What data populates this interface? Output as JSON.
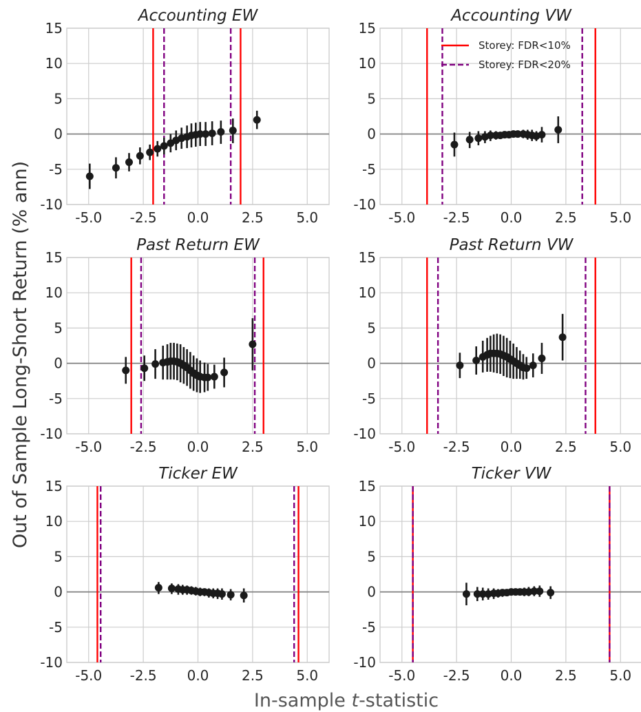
{
  "figure": {
    "ylabel": "Out of Sample Long-Short Return (% ann)",
    "xlabel_pre": "In-sample ",
    "xlabel_t": "t",
    "xlabel_post": "-statistic"
  },
  "legend": [
    {
      "label": "Storey: FDR<10%",
      "color": "#ff0000",
      "style": "solid"
    },
    {
      "label": "Storey: FDR<20%",
      "color": "#800080",
      "style": "dashed"
    }
  ],
  "colors": {
    "points": "#1a1a1a",
    "grid": "#cccccc",
    "zero_line": "#808080",
    "fdr10": "#ff0000",
    "fdr20": "#800080"
  },
  "chart_data": [
    {
      "type": "scatter",
      "title": "Accounting EW",
      "xlim": [
        -6,
        6
      ],
      "ylim": [
        -10,
        15
      ],
      "xticks": [
        "-5.0",
        "-2.5",
        "0.0",
        "2.5",
        "5.0"
      ],
      "yticks": [
        "-10",
        "-5",
        "0",
        "5",
        "10",
        "15"
      ],
      "fdr10": [
        -2.05,
        1.95
      ],
      "fdr20": [
        -1.55,
        1.5
      ],
      "points": [
        {
          "x": -4.95,
          "y": -6.0,
          "lo": -7.8,
          "hi": -4.2
        },
        {
          "x": -3.75,
          "y": -4.8,
          "lo": -6.3,
          "hi": -3.3
        },
        {
          "x": -3.15,
          "y": -4.0,
          "lo": -5.3,
          "hi": -2.7
        },
        {
          "x": -2.65,
          "y": -3.1,
          "lo": -4.3,
          "hi": -1.9
        },
        {
          "x": -2.2,
          "y": -2.6,
          "lo": -3.7,
          "hi": -1.5
        },
        {
          "x": -1.85,
          "y": -2.1,
          "lo": -3.2,
          "hi": -1.0
        },
        {
          "x": -1.55,
          "y": -1.7,
          "lo": -2.9,
          "hi": -0.5
        },
        {
          "x": -1.25,
          "y": -1.3,
          "lo": -2.6,
          "hi": 0.0
        },
        {
          "x": -1.0,
          "y": -0.9,
          "lo": -2.3,
          "hi": 0.5
        },
        {
          "x": -0.75,
          "y": -0.6,
          "lo": -2.1,
          "hi": 0.9
        },
        {
          "x": -0.5,
          "y": -0.4,
          "lo": -2.0,
          "hi": 1.2
        },
        {
          "x": -0.3,
          "y": -0.2,
          "lo": -1.9,
          "hi": 1.5
        },
        {
          "x": -0.1,
          "y": -0.1,
          "lo": -1.8,
          "hi": 1.6
        },
        {
          "x": 0.1,
          "y": 0.0,
          "lo": -1.7,
          "hi": 1.7
        },
        {
          "x": 0.35,
          "y": 0.0,
          "lo": -1.7,
          "hi": 1.7
        },
        {
          "x": 0.65,
          "y": 0.1,
          "lo": -1.6,
          "hi": 1.8
        },
        {
          "x": 1.05,
          "y": 0.3,
          "lo": -1.4,
          "hi": 1.9
        },
        {
          "x": 1.6,
          "y": 0.5,
          "lo": -1.3,
          "hi": 2.2
        },
        {
          "x": 2.7,
          "y": 2.0,
          "lo": 0.7,
          "hi": 3.3
        }
      ]
    },
    {
      "type": "scatter",
      "title": "Accounting VW",
      "xlim": [
        -6,
        6
      ],
      "ylim": [
        -10,
        15
      ],
      "xticks": [
        "-5.0",
        "-2.5",
        "0.0",
        "2.5",
        "5.0"
      ],
      "yticks": [
        "-10",
        "-5",
        "0",
        "5",
        "10",
        "15"
      ],
      "fdr10": [
        -3.85,
        3.85
      ],
      "fdr20": [
        -3.15,
        3.25
      ],
      "points": [
        {
          "x": -2.6,
          "y": -1.5,
          "lo": -3.2,
          "hi": 0.2
        },
        {
          "x": -1.9,
          "y": -0.8,
          "lo": -2.0,
          "hi": 0.3
        },
        {
          "x": -1.5,
          "y": -0.6,
          "lo": -1.6,
          "hi": 0.4
        },
        {
          "x": -1.2,
          "y": -0.4,
          "lo": -1.3,
          "hi": 0.4
        },
        {
          "x": -0.95,
          "y": -0.2,
          "lo": -1.0,
          "hi": 0.5
        },
        {
          "x": -0.7,
          "y": -0.2,
          "lo": -0.8,
          "hi": 0.4
        },
        {
          "x": -0.5,
          "y": -0.2,
          "lo": -0.7,
          "hi": 0.3
        },
        {
          "x": -0.3,
          "y": -0.1,
          "lo": -0.6,
          "hi": 0.4
        },
        {
          "x": -0.1,
          "y": -0.1,
          "lo": -0.5,
          "hi": 0.3
        },
        {
          "x": 0.1,
          "y": 0.0,
          "lo": -0.5,
          "hi": 0.4
        },
        {
          "x": 0.3,
          "y": 0.0,
          "lo": -0.5,
          "hi": 0.5
        },
        {
          "x": 0.55,
          "y": 0.0,
          "lo": -0.6,
          "hi": 0.6
        },
        {
          "x": 0.75,
          "y": -0.1,
          "lo": -0.8,
          "hi": 0.6
        },
        {
          "x": 0.95,
          "y": -0.2,
          "lo": -1.0,
          "hi": 0.6
        },
        {
          "x": 1.15,
          "y": -0.3,
          "lo": -1.0,
          "hi": 0.4
        },
        {
          "x": 1.4,
          "y": -0.1,
          "lo": -1.2,
          "hi": 1.0
        },
        {
          "x": 2.15,
          "y": 0.6,
          "lo": -1.3,
          "hi": 2.5
        }
      ]
    },
    {
      "type": "scatter",
      "title": "Past Return EW",
      "xlim": [
        -6,
        6
      ],
      "ylim": [
        -10,
        15
      ],
      "xticks": [
        "-5.0",
        "-2.5",
        "0.0",
        "2.5",
        "5.0"
      ],
      "yticks": [
        "-10",
        "-5",
        "0",
        "5",
        "10",
        "15"
      ],
      "fdr10": [
        -3.05,
        3.0
      ],
      "fdr20": [
        -2.6,
        2.6
      ],
      "points": [
        {
          "x": -3.3,
          "y": -1.0,
          "lo": -2.9,
          "hi": 0.9
        },
        {
          "x": -2.45,
          "y": -0.7,
          "lo": -2.5,
          "hi": 1.1
        },
        {
          "x": -1.95,
          "y": -0.1,
          "lo": -2.2,
          "hi": 2.0
        },
        {
          "x": -1.6,
          "y": 0.1,
          "lo": -2.3,
          "hi": 2.5
        },
        {
          "x": -1.4,
          "y": 0.2,
          "lo": -2.3,
          "hi": 2.7
        },
        {
          "x": -1.25,
          "y": 0.3,
          "lo": -2.3,
          "hi": 2.9
        },
        {
          "x": -1.1,
          "y": 0.3,
          "lo": -2.3,
          "hi": 2.9
        },
        {
          "x": -0.95,
          "y": 0.2,
          "lo": -2.4,
          "hi": 2.8
        },
        {
          "x": -0.8,
          "y": 0.0,
          "lo": -2.7,
          "hi": 2.7
        },
        {
          "x": -0.65,
          "y": -0.3,
          "lo": -2.9,
          "hi": 2.3
        },
        {
          "x": -0.5,
          "y": -0.6,
          "lo": -3.2,
          "hi": 2.0
        },
        {
          "x": -0.35,
          "y": -1.0,
          "lo": -3.6,
          "hi": 1.6
        },
        {
          "x": -0.2,
          "y": -1.4,
          "lo": -3.9,
          "hi": 1.1
        },
        {
          "x": -0.05,
          "y": -1.7,
          "lo": -4.1,
          "hi": 0.7
        },
        {
          "x": 0.1,
          "y": -1.9,
          "lo": -4.2,
          "hi": 0.4
        },
        {
          "x": 0.3,
          "y": -2.0,
          "lo": -4.1,
          "hi": 0.1
        },
        {
          "x": 0.45,
          "y": -2.0,
          "lo": -3.9,
          "hi": -0.1
        },
        {
          "x": 0.75,
          "y": -1.9,
          "lo": -3.6,
          "hi": -0.2
        },
        {
          "x": 1.2,
          "y": -1.3,
          "lo": -3.4,
          "hi": 0.8
        },
        {
          "x": 2.5,
          "y": 2.7,
          "lo": -1.0,
          "hi": 6.4
        }
      ]
    },
    {
      "type": "scatter",
      "title": "Past Return VW",
      "xlim": [
        -6,
        6
      ],
      "ylim": [
        -10,
        15
      ],
      "xticks": [
        "-5.0",
        "-2.5",
        "0.0",
        "2.5",
        "5.0"
      ],
      "yticks": [
        "-10",
        "-5",
        "0",
        "5",
        "10",
        "15"
      ],
      "fdr10": [
        -3.85,
        3.85
      ],
      "fdr20": [
        -3.35,
        3.4
      ],
      "points": [
        {
          "x": -2.35,
          "y": -0.3,
          "lo": -2.1,
          "hi": 1.5
        },
        {
          "x": -1.6,
          "y": 0.4,
          "lo": -1.6,
          "hi": 2.4
        },
        {
          "x": -1.3,
          "y": 0.9,
          "lo": -1.3,
          "hi": 3.2
        },
        {
          "x": -1.1,
          "y": 1.2,
          "lo": -1.2,
          "hi": 3.6
        },
        {
          "x": -0.95,
          "y": 1.4,
          "lo": -1.2,
          "hi": 3.9
        },
        {
          "x": -0.8,
          "y": 1.4,
          "lo": -1.3,
          "hi": 4.1
        },
        {
          "x": -0.65,
          "y": 1.4,
          "lo": -1.4,
          "hi": 4.2
        },
        {
          "x": -0.5,
          "y": 1.3,
          "lo": -1.5,
          "hi": 4.1
        },
        {
          "x": -0.35,
          "y": 1.1,
          "lo": -1.8,
          "hi": 3.9
        },
        {
          "x": -0.2,
          "y": 0.9,
          "lo": -2.0,
          "hi": 3.6
        },
        {
          "x": -0.05,
          "y": 0.6,
          "lo": -2.1,
          "hi": 3.2
        },
        {
          "x": 0.1,
          "y": 0.3,
          "lo": -2.2,
          "hi": 2.8
        },
        {
          "x": 0.25,
          "y": 0.0,
          "lo": -2.2,
          "hi": 2.3
        },
        {
          "x": 0.4,
          "y": -0.3,
          "lo": -2.2,
          "hi": 1.8
        },
        {
          "x": 0.55,
          "y": -0.6,
          "lo": -2.3,
          "hi": 1.3
        },
        {
          "x": 0.7,
          "y": -0.7,
          "lo": -2.2,
          "hi": 0.9
        },
        {
          "x": 1.0,
          "y": -0.3,
          "lo": -2.0,
          "hi": 1.4
        },
        {
          "x": 1.4,
          "y": 0.7,
          "lo": -1.5,
          "hi": 2.9
        },
        {
          "x": 2.35,
          "y": 3.7,
          "lo": 0.4,
          "hi": 7.0
        }
      ]
    },
    {
      "type": "scatter",
      "title": "Ticker EW",
      "xlim": [
        -6,
        6
      ],
      "ylim": [
        -10,
        15
      ],
      "xticks": [
        "-5.0",
        "-2.5",
        "0.0",
        "2.5",
        "5.0"
      ],
      "yticks": [
        "-10",
        "-5",
        "0",
        "5",
        "10",
        "15"
      ],
      "fdr10": [
        -4.6,
        4.6
      ],
      "fdr20": [
        -4.45,
        4.4
      ],
      "points": [
        {
          "x": -1.8,
          "y": 0.6,
          "lo": -0.3,
          "hi": 1.4
        },
        {
          "x": -1.2,
          "y": 0.5,
          "lo": -0.3,
          "hi": 1.2
        },
        {
          "x": -0.9,
          "y": 0.4,
          "lo": -0.4,
          "hi": 1.1
        },
        {
          "x": -0.7,
          "y": 0.3,
          "lo": -0.4,
          "hi": 1.0
        },
        {
          "x": -0.5,
          "y": 0.3,
          "lo": -0.4,
          "hi": 0.9
        },
        {
          "x": -0.3,
          "y": 0.2,
          "lo": -0.4,
          "hi": 0.8
        },
        {
          "x": -0.1,
          "y": 0.1,
          "lo": -0.5,
          "hi": 0.7
        },
        {
          "x": 0.1,
          "y": 0.0,
          "lo": -0.6,
          "hi": 0.6
        },
        {
          "x": 0.3,
          "y": 0.0,
          "lo": -0.6,
          "hi": 0.5
        },
        {
          "x": 0.5,
          "y": -0.1,
          "lo": -0.8,
          "hi": 0.5
        },
        {
          "x": 0.7,
          "y": -0.2,
          "lo": -0.9,
          "hi": 0.5
        },
        {
          "x": 0.9,
          "y": -0.2,
          "lo": -1.0,
          "hi": 0.5
        },
        {
          "x": 1.1,
          "y": -0.3,
          "lo": -1.1,
          "hi": 0.5
        },
        {
          "x": 1.5,
          "y": -0.4,
          "lo": -1.2,
          "hi": 0.4
        },
        {
          "x": 2.1,
          "y": -0.5,
          "lo": -1.5,
          "hi": 0.5
        }
      ]
    },
    {
      "type": "scatter",
      "title": "Ticker VW",
      "xlim": [
        -6,
        6
      ],
      "ylim": [
        -10,
        15
      ],
      "xticks": [
        "-5.0",
        "-2.5",
        "0.0",
        "2.5",
        "5.0"
      ],
      "yticks": [
        "-10",
        "-5",
        "0",
        "5",
        "10",
        "15"
      ],
      "fdr10": [
        -4.5,
        4.5
      ],
      "fdr20": [
        -4.5,
        4.5
      ],
      "points": [
        {
          "x": -2.05,
          "y": -0.3,
          "lo": -1.9,
          "hi": 1.3
        },
        {
          "x": -1.55,
          "y": -0.3,
          "lo": -1.3,
          "hi": 0.7
        },
        {
          "x": -1.3,
          "y": -0.3,
          "lo": -1.2,
          "hi": 0.6
        },
        {
          "x": -1.05,
          "y": -0.3,
          "lo": -1.1,
          "hi": 0.5
        },
        {
          "x": -0.8,
          "y": -0.2,
          "lo": -1.0,
          "hi": 0.5
        },
        {
          "x": -0.6,
          "y": -0.2,
          "lo": -0.8,
          "hi": 0.4
        },
        {
          "x": -0.4,
          "y": -0.1,
          "lo": -0.7,
          "hi": 0.4
        },
        {
          "x": -0.2,
          "y": -0.1,
          "lo": -0.6,
          "hi": 0.4
        },
        {
          "x": 0.0,
          "y": 0.0,
          "lo": -0.5,
          "hi": 0.5
        },
        {
          "x": 0.2,
          "y": 0.0,
          "lo": -0.5,
          "hi": 0.5
        },
        {
          "x": 0.4,
          "y": 0.0,
          "lo": -0.5,
          "hi": 0.5
        },
        {
          "x": 0.6,
          "y": 0.0,
          "lo": -0.6,
          "hi": 0.6
        },
        {
          "x": 0.8,
          "y": 0.0,
          "lo": -0.6,
          "hi": 0.7
        },
        {
          "x": 1.05,
          "y": 0.1,
          "lo": -0.6,
          "hi": 0.8
        },
        {
          "x": 1.3,
          "y": 0.1,
          "lo": -0.7,
          "hi": 0.9
        },
        {
          "x": 1.8,
          "y": -0.1,
          "lo": -1.0,
          "hi": 0.8
        }
      ]
    }
  ]
}
